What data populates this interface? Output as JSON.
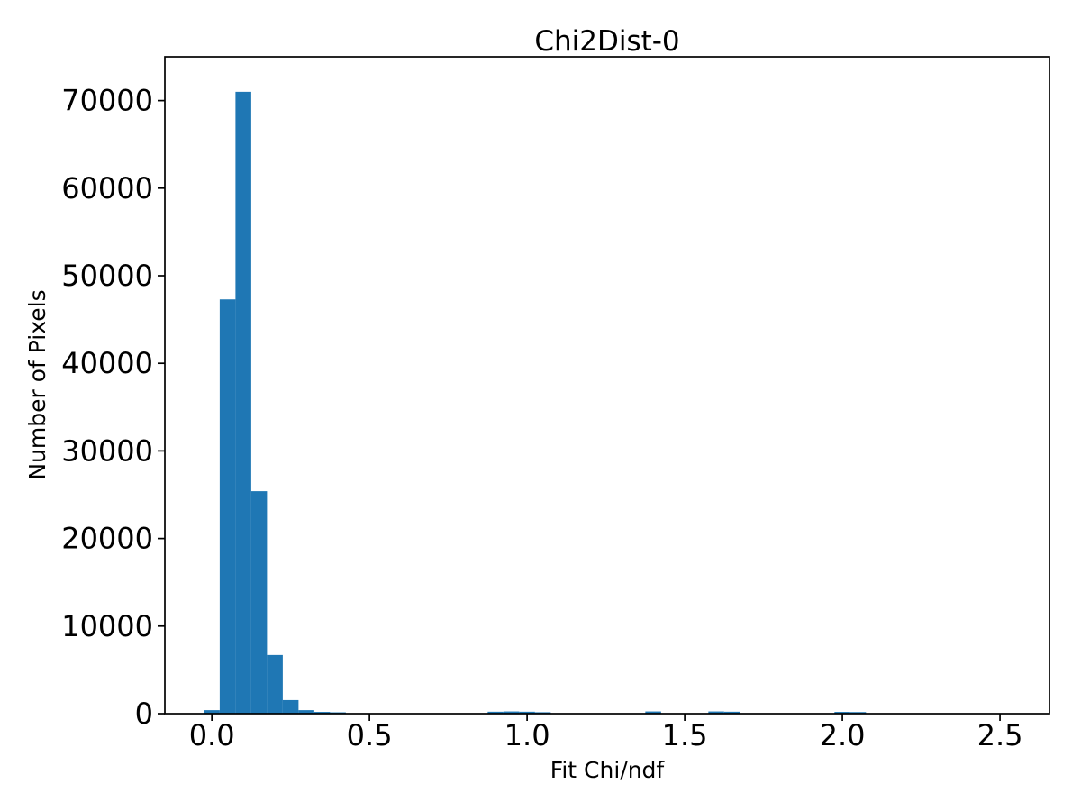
{
  "figure": {
    "title": "Chi2Dist-0",
    "background_color": "#ffffff",
    "spine_color": "#000000",
    "text_color": "#000000"
  },
  "chart_data": {
    "type": "bar",
    "subtype": "histogram",
    "title": "Chi2Dist-0",
    "xlabel": "Fit Chi/ndf",
    "ylabel": "Number of Pixels",
    "bar_color": "#1f77b4",
    "grid": false,
    "legend_position": "none",
    "xlim": [
      -0.149,
      2.657
    ],
    "ylim": [
      0,
      75000
    ],
    "xticks": [
      0.0,
      0.5,
      1.0,
      1.5,
      2.0,
      2.5
    ],
    "xtick_labels": [
      "0.0",
      "0.5",
      "1.0",
      "1.5",
      "2.0",
      "2.5"
    ],
    "yticks": [
      0,
      10000,
      20000,
      30000,
      40000,
      50000,
      60000,
      70000
    ],
    "ytick_labels": [
      "0",
      "10000",
      "20000",
      "30000",
      "40000",
      "50000",
      "60000",
      "70000"
    ],
    "histogram": {
      "bin_start": -0.025,
      "bin_width": 0.05,
      "counts": [
        400,
        47300,
        71000,
        25400,
        6700,
        1550,
        400,
        200,
        150,
        0,
        0,
        0,
        0,
        0,
        0,
        0,
        0,
        0,
        220,
        250,
        220,
        160,
        0,
        0,
        0,
        0,
        0,
        0,
        250,
        0,
        0,
        0,
        250,
        220,
        0,
        0,
        0,
        0,
        0,
        0,
        200,
        180
      ]
    }
  }
}
